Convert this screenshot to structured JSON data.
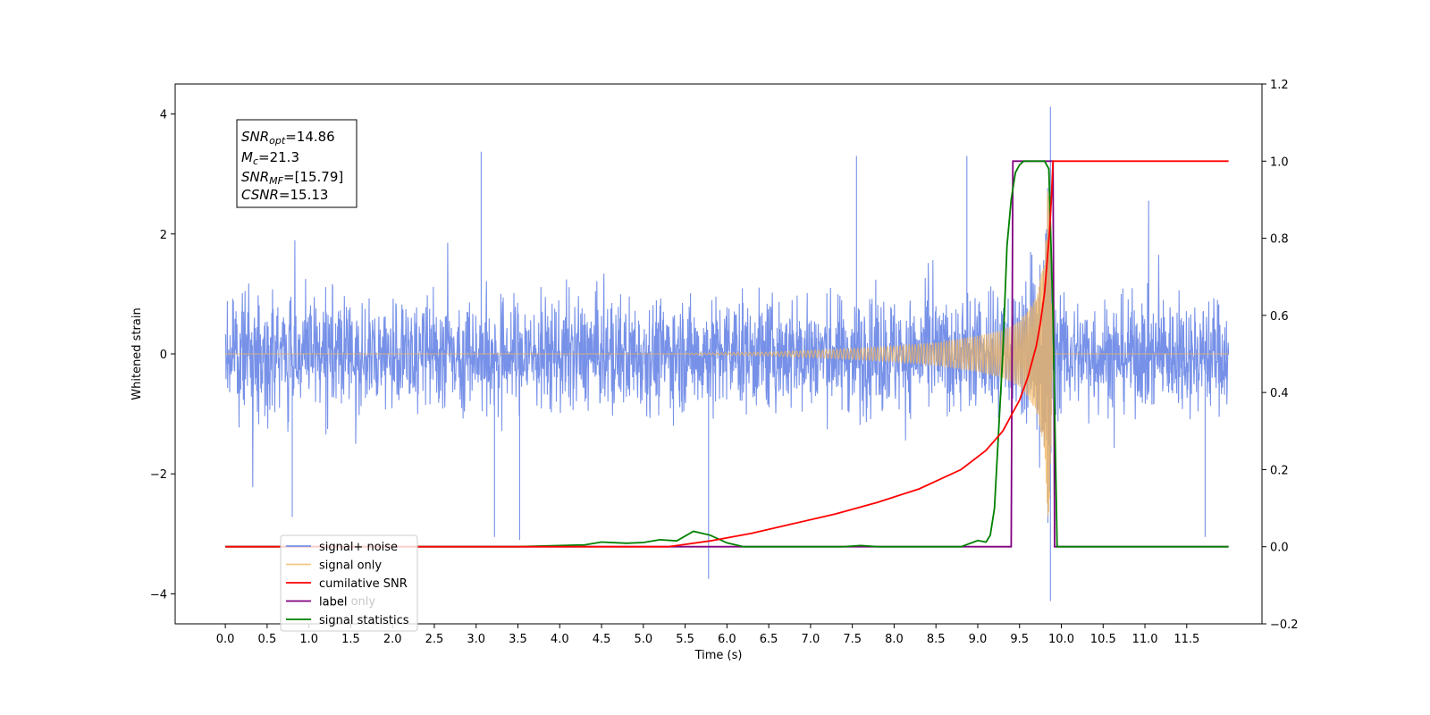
{
  "chart_data": {
    "type": "line",
    "title": "",
    "xlabel": "Time (s)",
    "ylabel": "Whitened strain",
    "xlim": [
      -0.6,
      12.4
    ],
    "ylim": [
      -4.5,
      4.5
    ],
    "y2lim": [
      -0.2,
      1.2
    ],
    "grid": false,
    "legend_position": "lower-left",
    "x_ticks": [
      "0.0",
      "0.5",
      "1.0",
      "1.5",
      "2.0",
      "2.5",
      "3.0",
      "3.5",
      "4.0",
      "4.5",
      "5.0",
      "5.5",
      "6.0",
      "6.5",
      "7.0",
      "7.5",
      "8.0",
      "8.5",
      "9.0",
      "9.5",
      "10.0",
      "10.5",
      "11.0",
      "11.5"
    ],
    "y_ticks": [
      "4",
      "2",
      "0",
      "−2",
      "−4"
    ],
    "y2_ticks": [
      "1.2",
      "1.0",
      "0.8",
      "0.6",
      "0.4",
      "0.2",
      "0.0",
      "−0.2"
    ],
    "stats": {
      "snr_opt": {
        "main": "SNR",
        "sub": "opt",
        "value": "=14.86"
      },
      "mc": {
        "main": "M",
        "sub": "c",
        "value": "=21.3"
      },
      "snr_mf": {
        "main": "SNR",
        "sub": "MF",
        "value": "=[15.79]"
      },
      "csnr": {
        "main": "CSNR",
        "sub": "",
        "value": "=15.13"
      }
    },
    "series": [
      {
        "name": "signal+ noise",
        "axis": "left",
        "color": "#6b88e6",
        "description": "noise envelope approx ±1.6 with spikes to ±3.4, burst to 4.1 near 9.87 s",
        "x": [
          0.0,
          12.0
        ],
        "amplitude_typical": 1.6,
        "spikes": [
          [
            3.06,
            3.37
          ],
          [
            5.78,
            -3.75
          ],
          [
            9.87,
            4.12
          ],
          [
            9.87,
            -4.12
          ],
          [
            7.55,
            3.3
          ],
          [
            8.87,
            3.3
          ],
          [
            3.52,
            -3.1
          ],
          [
            3.22,
            -3.05
          ],
          [
            11.72,
            -3.05
          ],
          [
            0.8,
            -2.72
          ]
        ]
      },
      {
        "name": "signal only",
        "axis": "left",
        "color": "#f2b55e",
        "description": "chirp, amplitude grows from 0 near 5.5 s to ~3.2 at 9.85 s, then 0",
        "envelope_x": [
          5.5,
          6.5,
          7.0,
          7.5,
          8.0,
          8.5,
          9.0,
          9.3,
          9.5,
          9.7,
          9.8,
          9.85,
          9.9
        ],
        "envelope_y": [
          0.01,
          0.03,
          0.06,
          0.09,
          0.13,
          0.19,
          0.3,
          0.4,
          0.55,
          0.95,
          1.6,
          3.2,
          0.0
        ]
      },
      {
        "name": "cumilative SNR",
        "axis": "right",
        "color": "#ff0000",
        "x": [
          0.0,
          5.3,
          5.8,
          6.3,
          6.8,
          7.3,
          7.8,
          8.3,
          8.8,
          9.1,
          9.3,
          9.5,
          9.6,
          9.7,
          9.75,
          9.8,
          9.83,
          9.86,
          9.88,
          9.9,
          12.0
        ],
        "values": [
          0.0,
          0.0,
          0.015,
          0.035,
          0.06,
          0.085,
          0.115,
          0.15,
          0.2,
          0.25,
          0.3,
          0.38,
          0.44,
          0.52,
          0.58,
          0.66,
          0.74,
          0.82,
          0.9,
          1.0,
          1.0
        ]
      },
      {
        "name": "label",
        "axis": "right",
        "color": "#800080",
        "x": [
          0.0,
          9.4,
          9.42,
          9.9,
          9.92,
          12.0
        ],
        "values": [
          0.0,
          0.0,
          1.0,
          1.0,
          0.0,
          0.0
        ]
      },
      {
        "name": "signal statistics",
        "axis": "right",
        "color": "#008000",
        "x": [
          0.0,
          3.5,
          4.0,
          4.3,
          4.5,
          4.8,
          5.0,
          5.2,
          5.4,
          5.6,
          5.8,
          6.0,
          6.2,
          6.4,
          7.4,
          7.6,
          7.8,
          8.8,
          9.0,
          9.1,
          9.15,
          9.2,
          9.3,
          9.35,
          9.4,
          9.45,
          9.5,
          9.55,
          9.6,
          9.7,
          9.8,
          9.85,
          9.9,
          9.95,
          12.0
        ],
        "values": [
          0.0,
          0.0,
          0.003,
          0.005,
          0.012,
          0.009,
          0.011,
          0.018,
          0.015,
          0.04,
          0.03,
          0.01,
          0.0,
          0.0,
          0.0,
          0.003,
          0.0,
          0.0,
          0.016,
          0.012,
          0.03,
          0.1,
          0.5,
          0.78,
          0.9,
          0.97,
          0.99,
          1.0,
          1.0,
          1.0,
          1.0,
          0.98,
          0.6,
          0.0,
          0.0
        ]
      }
    ],
    "legend_overlap_ghost": "label only"
  }
}
